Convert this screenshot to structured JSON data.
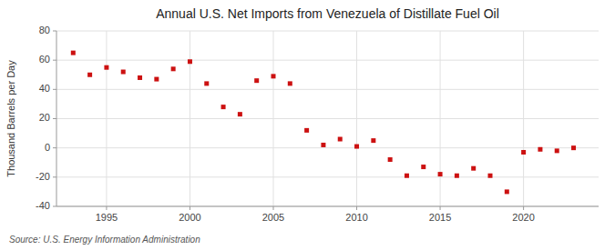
{
  "chart_data": {
    "type": "scatter",
    "title": "Annual U.S. Net Imports from Venezuela of Distillate Fuel Oil",
    "ylabel": "Thousand Barrels per Day",
    "annotations": [
      "Source: U.S. Energy Information Administration"
    ],
    "x": [
      1993,
      1994,
      1995,
      1996,
      1997,
      1998,
      1999,
      2000,
      2001,
      2002,
      2003,
      2004,
      2005,
      2006,
      2007,
      2008,
      2009,
      2010,
      2011,
      2012,
      2013,
      2014,
      2015,
      2016,
      2017,
      2018,
      2019,
      2020,
      2021,
      2022,
      2023
    ],
    "values": [
      65,
      50,
      55,
      52,
      48,
      47,
      54,
      59,
      44,
      28,
      23,
      46,
      49,
      44,
      12,
      2,
      6,
      1,
      5,
      -8,
      -19,
      -13,
      -18,
      -19,
      -14,
      -19,
      -30,
      -3,
      -1,
      -2,
      0
    ],
    "color": "#cc1111",
    "marker": "square",
    "xlim": [
      1992,
      2024.5
    ],
    "xticks": [
      1995,
      2000,
      2005,
      2010,
      2015,
      2020
    ],
    "ylim": [
      -40,
      80
    ],
    "yticks": [
      -40,
      -20,
      0,
      20,
      40,
      60,
      80
    ],
    "grid": true
  }
}
